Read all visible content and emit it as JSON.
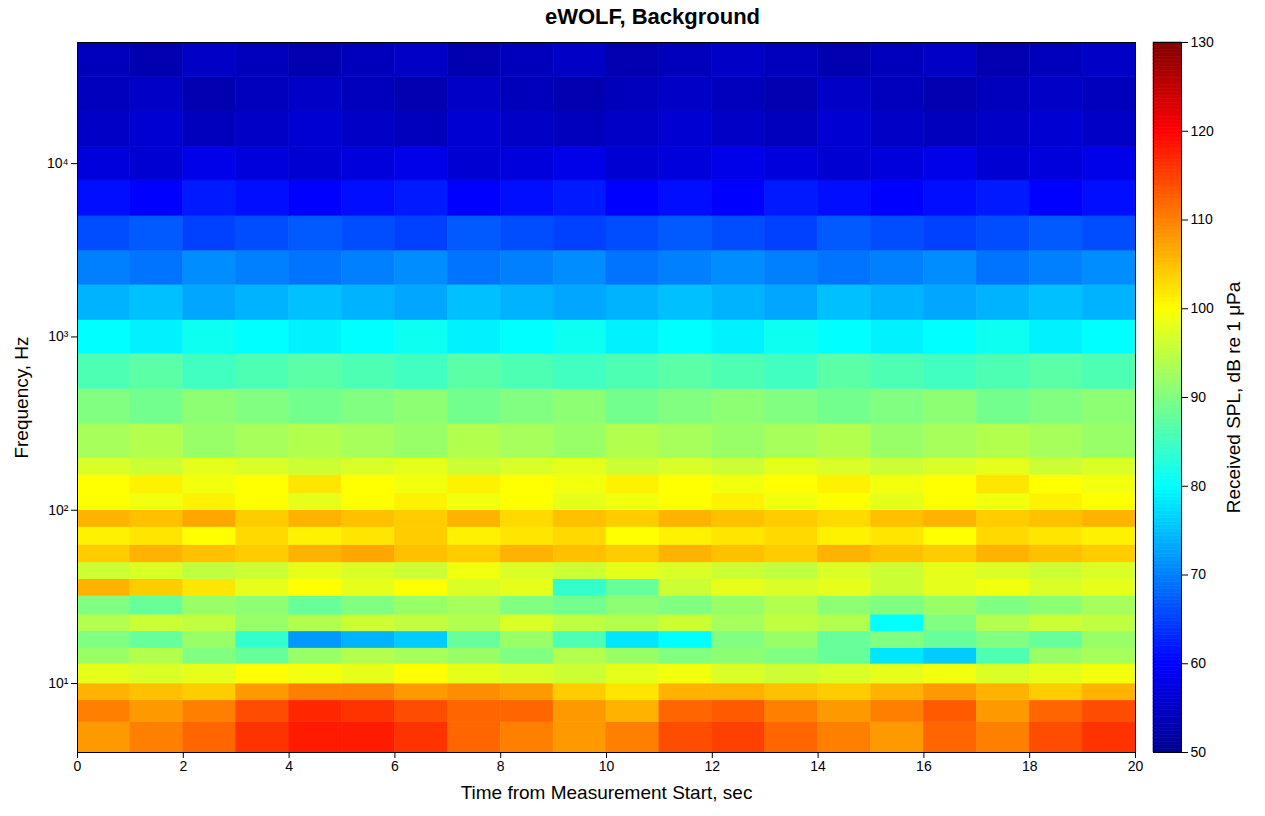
{
  "chart_data": {
    "type": "heatmap",
    "title": "eWOLF, Background",
    "x_label": "Time from Measurement Start, sec",
    "y_label": "Frequency, Hz",
    "log": "y",
    "grid": false,
    "color": "jet",
    "xlim": [
      0,
      20
    ],
    "xticks": [
      0,
      2,
      4,
      6,
      8,
      10,
      12,
      14,
      16,
      18,
      20
    ],
    "ylim": [
      4,
      50000
    ],
    "yticks": [
      {
        "value": 10,
        "label": "10¹"
      },
      {
        "value": 100,
        "label": "10²"
      },
      {
        "value": 1000,
        "label": "10³"
      },
      {
        "value": 10000,
        "label": "10⁴"
      }
    ],
    "x_bins": [
      0,
      1,
      2,
      3,
      4,
      5,
      6,
      7,
      8,
      9,
      10,
      11,
      12,
      13,
      14,
      15,
      16,
      17,
      18,
      19,
      20
    ],
    "y_bins": [
      4,
      6,
      8,
      10,
      13,
      16,
      20,
      25,
      32,
      40,
      50,
      63,
      80,
      100,
      125,
      160,
      200,
      315,
      500,
      800,
      1250,
      2000,
      3150,
      5000,
      8000,
      12500,
      20000,
      31500,
      50000
    ],
    "values": [
      [
        108,
        110,
        112,
        116,
        118,
        118,
        116,
        112,
        110,
        108,
        110,
        114,
        115,
        112,
        110,
        108,
        112,
        110,
        114,
        116
      ],
      [
        110,
        108,
        110,
        114,
        117,
        116,
        114,
        112,
        112,
        108,
        106,
        112,
        113,
        110,
        108,
        110,
        113,
        108,
        112,
        114
      ],
      [
        106,
        105,
        104,
        108,
        110,
        110,
        108,
        109,
        108,
        104,
        102,
        106,
        106,
        105,
        104,
        106,
        108,
        106,
        104,
        106
      ],
      [
        98,
        97,
        98,
        100,
        99,
        98,
        100,
        98,
        97,
        96,
        98,
        99,
        97,
        96,
        97,
        98,
        99,
        97,
        98,
        99
      ],
      [
        92,
        94,
        90,
        88,
        92,
        94,
        93,
        92,
        90,
        94,
        92,
        90,
        91,
        90,
        88,
        78,
        76,
        86,
        92,
        93
      ],
      [
        90,
        88,
        92,
        84,
        72,
        74,
        76,
        88,
        92,
        86,
        78,
        80,
        90,
        92,
        88,
        90,
        88,
        90,
        88,
        92
      ],
      [
        94,
        96,
        95,
        92,
        94,
        96,
        95,
        94,
        97,
        95,
        94,
        96,
        93,
        95,
        94,
        80,
        90,
        94,
        96,
        95
      ],
      [
        90,
        88,
        92,
        91,
        88,
        90,
        92,
        93,
        90,
        89,
        91,
        90,
        92,
        94,
        91,
        90,
        92,
        90,
        91,
        93
      ],
      [
        106,
        104,
        102,
        98,
        100,
        98,
        100,
        97,
        98,
        84,
        88,
        96,
        98,
        97,
        98,
        96,
        98,
        99,
        97,
        98
      ],
      [
        96,
        97,
        95,
        96,
        98,
        97,
        96,
        99,
        97,
        96,
        98,
        97,
        96,
        95,
        97,
        96,
        98,
        97,
        96,
        97
      ],
      [
        104,
        106,
        105,
        104,
        106,
        107,
        105,
        104,
        106,
        105,
        104,
        106,
        105,
        104,
        106,
        105,
        104,
        106,
        105,
        104
      ],
      [
        101,
        102,
        100,
        103,
        101,
        102,
        104,
        101,
        102,
        103,
        100,
        101,
        102,
        103,
        101,
        102,
        100,
        103,
        102,
        101
      ],
      [
        106,
        105,
        107,
        104,
        106,
        105,
        104,
        106,
        103,
        105,
        104,
        106,
        105,
        104,
        103,
        105,
        106,
        104,
        105,
        106
      ],
      [
        100,
        99,
        101,
        100,
        98,
        100,
        101,
        99,
        100,
        98,
        99,
        100,
        101,
        99,
        100,
        98,
        100,
        99,
        101,
        100
      ],
      [
        100,
        101,
        99,
        100,
        102,
        100,
        99,
        101,
        100,
        99,
        101,
        100,
        99,
        100,
        101,
        99,
        100,
        102,
        100,
        99
      ],
      [
        97,
        96,
        98,
        97,
        96,
        97,
        98,
        96,
        97,
        98,
        96,
        97,
        96,
        98,
        97,
        96,
        97,
        98,
        96,
        97
      ],
      [
        93,
        94,
        92,
        93,
        94,
        93,
        92,
        94,
        93,
        92,
        94,
        93,
        92,
        93,
        94,
        92,
        93,
        94,
        93,
        92
      ],
      [
        90,
        89,
        91,
        90,
        89,
        90,
        91,
        89,
        90,
        91,
        89,
        90,
        91,
        90,
        89,
        90,
        91,
        89,
        90,
        91
      ],
      [
        86,
        87,
        85,
        86,
        87,
        86,
        85,
        87,
        86,
        85,
        86,
        87,
        86,
        85,
        87,
        86,
        85,
        86,
        87,
        86
      ],
      [
        80,
        79,
        81,
        80,
        79,
        80,
        81,
        79,
        80,
        81,
        79,
        80,
        79,
        81,
        80,
        79,
        80,
        81,
        79,
        80
      ],
      [
        74,
        75,
        73,
        74,
        75,
        74,
        73,
        75,
        74,
        73,
        74,
        75,
        74,
        73,
        75,
        74,
        73,
        74,
        75,
        74
      ],
      [
        70,
        69,
        71,
        70,
        69,
        70,
        71,
        69,
        70,
        71,
        69,
        70,
        71,
        70,
        69,
        70,
        71,
        69,
        70,
        71
      ],
      [
        66,
        67,
        65,
        66,
        67,
        66,
        65,
        67,
        66,
        65,
        66,
        67,
        66,
        65,
        67,
        66,
        65,
        66,
        67,
        66
      ],
      [
        61,
        60,
        62,
        61,
        60,
        61,
        62,
        60,
        61,
        62,
        60,
        61,
        60,
        62,
        61,
        60,
        61,
        62,
        60,
        61
      ],
      [
        57,
        56,
        58,
        57,
        56,
        57,
        58,
        56,
        57,
        58,
        56,
        57,
        58,
        57,
        56,
        57,
        58,
        56,
        57,
        58
      ],
      [
        55,
        56,
        54,
        55,
        56,
        55,
        54,
        56,
        55,
        54,
        55,
        56,
        55,
        54,
        56,
        55,
        54,
        55,
        56,
        55
      ],
      [
        54,
        55,
        53,
        54,
        55,
        54,
        53,
        55,
        54,
        53,
        54,
        55,
        54,
        53,
        55,
        54,
        53,
        54,
        55,
        54
      ],
      [
        54,
        53,
        55,
        54,
        53,
        54,
        55,
        53,
        54,
        55,
        53,
        54,
        55,
        54,
        53,
        54,
        55,
        53,
        54,
        55
      ]
    ],
    "colorbar": {
      "label": "Received SPL, dB re 1 μPa",
      "range": [
        50,
        130
      ],
      "ticks": [
        50,
        60,
        70,
        80,
        90,
        100,
        110,
        120,
        130
      ]
    }
  }
}
